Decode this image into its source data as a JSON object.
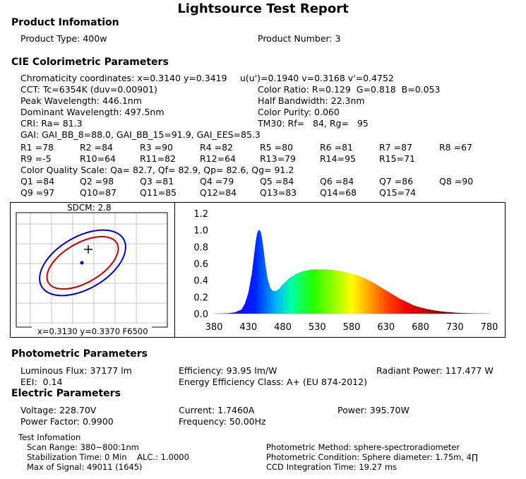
{
  "report_title": "Lightsource Test Report",
  "product": {
    "heading": "Product Infomation",
    "type": "Product Type: 400w",
    "number": "Product Number: 3"
  },
  "cie": {
    "heading": "CIE Colorimetric Parameters",
    "chromaticity": "Chromaticity coordinates: x=0.3140 y=0.3419",
    "uv": "u(u')=0.1940 v=0.3168 v'=0.4752",
    "cct": "CCT: Tc=6354K (duv=0.00901)",
    "color_ratio": "Color Ratio: R=0.129  G=0.818  B=0.053",
    "peak": "Peak Wavelength: 446.1nm",
    "half_bw": "Half Bandwidth: 22.3nm",
    "dominant": "Dominant Wavelength: 497.5nm",
    "purity": "Color Purity: 0.060",
    "cri": "CRI: Ra= 81.3",
    "tm30": "TM30: Rf=   84, Rg=   95",
    "gai": "GAI: GAI_BB_8=88.0, GAI_BB_15=91.9, GAI_EES=85.3",
    "r_values": [
      "R1 =78",
      "R2 =84",
      "R3 =90",
      "R4 =82",
      "R5 =80",
      "R6 =81",
      "R7 =87",
      "R8 =67",
      "R9 =-5",
      "R10=64",
      "R11=82",
      "R12=64",
      "R13=79",
      "R14=95",
      "R15=71"
    ],
    "cqs": "Color Quality Scale: Qa= 82.7, Qf= 82.9, Qp= 82.6, Qg= 91.2",
    "q_values": [
      "Q1 =84",
      "Q2 =98",
      "Q3 =81",
      "Q4 =79",
      "Q5 =84",
      "Q6 =84",
      "Q7 =86",
      "Q8 =90",
      "Q9 =97",
      "Q10=87",
      "Q11=85",
      "Q12=84",
      "Q13=83",
      "Q14=68",
      "Q15=74"
    ]
  },
  "sdcm_plot": {
    "label": "SDCM:   2.8",
    "coords": "x=0.3130 y=0.3370 F6500"
  },
  "chart_data": {
    "type": "area",
    "title": "",
    "xlabel": "",
    "ylabel": "",
    "xlim": [
      380,
      780
    ],
    "ylim": [
      0,
      1.2
    ],
    "x_ticks": [
      "380",
      "430",
      "480",
      "530",
      "580",
      "630",
      "680",
      "730",
      "780"
    ],
    "y_ticks": [
      "0.0",
      "0.2",
      "0.4",
      "0.6",
      "0.8",
      "1.0",
      "1.2"
    ],
    "x": [
      380,
      400,
      410,
      420,
      425,
      430,
      435,
      438,
      441,
      443,
      445,
      446.1,
      448,
      450,
      452,
      455,
      458,
      462,
      466,
      470,
      475,
      480,
      490,
      500,
      510,
      520,
      530,
      540,
      550,
      560,
      570,
      580,
      590,
      600,
      610,
      620,
      630,
      640,
      650,
      660,
      670,
      680,
      690,
      700,
      710,
      720,
      730,
      740,
      750,
      760,
      770,
      780
    ],
    "y": [
      0.0,
      0.005,
      0.015,
      0.05,
      0.12,
      0.25,
      0.48,
      0.68,
      0.88,
      0.97,
      1.0,
      1.0,
      0.98,
      0.9,
      0.78,
      0.58,
      0.42,
      0.31,
      0.27,
      0.27,
      0.3,
      0.35,
      0.43,
      0.48,
      0.51,
      0.525,
      0.53,
      0.53,
      0.525,
      0.515,
      0.5,
      0.48,
      0.455,
      0.42,
      0.38,
      0.33,
      0.28,
      0.23,
      0.18,
      0.14,
      0.1,
      0.075,
      0.055,
      0.04,
      0.028,
      0.02,
      0.013,
      0.008,
      0.005,
      0.003,
      0.002,
      0.001
    ]
  },
  "photometric": {
    "heading": "Photometric Parameters",
    "flux": "Luminous Flux: 37177 lm",
    "efficiency": "Efficiency: 93.95 lm/W",
    "radiant": "Radiant Power: 117.477 W",
    "eei": "EEI:  0.14",
    "energy_class": "Energy Efficiency Class: A+ (EU 874-2012)"
  },
  "electric": {
    "heading": "Electric Parameters",
    "voltage": "Voltage: 228.70V",
    "current": "Current: 1.7460A",
    "power": "Power: 395.70W",
    "pf": "Power Factor: 0.9900",
    "frequency": "Frequency: 50.00Hz"
  },
  "test": {
    "heading": "Test Infomation",
    "scan_range": "Scan Range: 380~800:1nm",
    "stabilization": "Stabilization Time: 0 Min    ALC.: 1.0000",
    "max_signal": "Max of Signal: 49011 (1645)",
    "method": "Photometric Method: sphere-spectroradiometer",
    "condition": "Photometric Condition: Sphere diameter: 1.75m, 4∏",
    "ccd": "CCD Integration Time: 19.27 ms"
  }
}
